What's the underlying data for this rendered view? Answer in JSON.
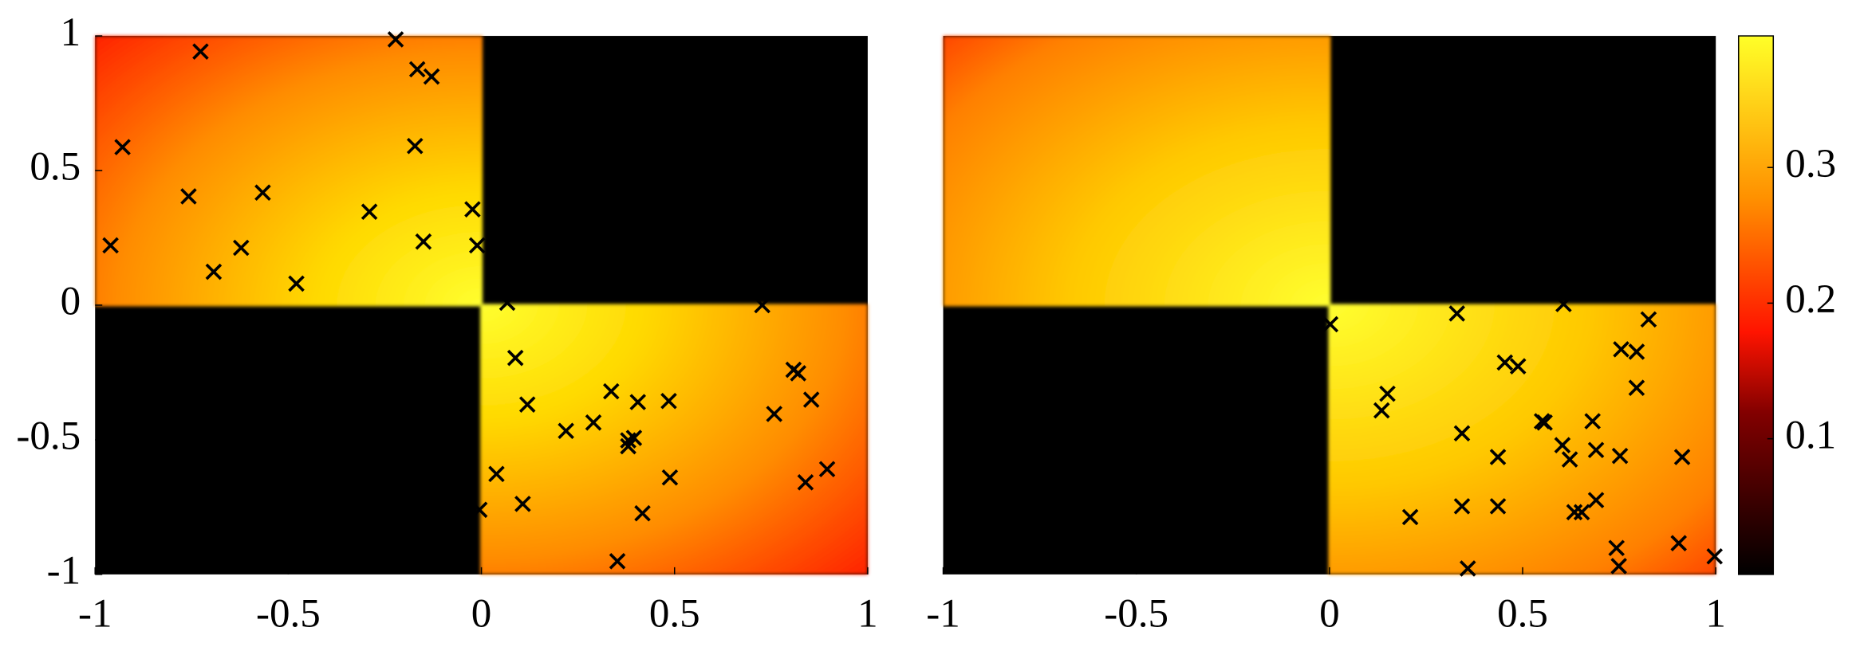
{
  "chart_data": [
    {
      "type": "scatter",
      "color": "#000000",
      "xlim": [
        -1,
        1
      ],
      "ylim": [
        -1,
        1
      ],
      "xticks": [
        -1,
        -0.5,
        0,
        0.5,
        1
      ],
      "yticks": [
        -1,
        -0.5,
        0,
        0.5,
        1
      ],
      "x": [
        -0.727,
        -0.222,
        -0.166,
        -0.129,
        -0.929,
        -0.172,
        -0.758,
        -0.566,
        -0.29,
        -0.023,
        -0.96,
        -0.622,
        -0.15,
        -0.011,
        -0.693,
        -0.479,
        0.067,
        0.727,
        0.088,
        0.119,
        0.336,
        0.405,
        0.485,
        0.29,
        0.219,
        0.38,
        0.395,
        0.38,
        0.808,
        0.82,
        0.854,
        0.758,
        0.895,
        0.839,
        0.039,
        0.488,
        -0.005,
        0.107,
        0.417,
        0.352
      ],
      "values": [
        0.942,
        0.987,
        0.876,
        0.849,
        0.587,
        0.591,
        0.404,
        0.418,
        0.347,
        0.356,
        0.222,
        0.213,
        0.236,
        0.222,
        0.124,
        0.08,
        0.009,
        0.0,
        -0.196,
        -0.369,
        -0.32,
        -0.36,
        -0.356,
        -0.436,
        -0.467,
        -0.502,
        -0.493,
        -0.524,
        -0.24,
        -0.253,
        -0.351,
        -0.404,
        -0.609,
        -0.658,
        -0.627,
        -0.64,
        -0.76,
        -0.738,
        -0.773,
        -0.951
      ]
    },
    {
      "type": "scatter",
      "color": "#000000",
      "xlim": [
        -1,
        1
      ],
      "ylim": [
        -1,
        1
      ],
      "xticks": [
        -1,
        -0.5,
        0,
        0.5,
        1
      ],
      "x": [
        0.002,
        0.33,
        0.606,
        0.826,
        0.15,
        0.135,
        0.454,
        0.488,
        0.755,
        0.795,
        0.795,
        0.55,
        0.557,
        0.681,
        0.343,
        0.603,
        0.69,
        0.622,
        0.752,
        0.436,
        0.913,
        0.343,
        0.436,
        0.69,
        0.634,
        0.653,
        0.209,
        0.743,
        0.904,
        0.749,
        0.358,
        0.997
      ],
      "values": [
        -0.071,
        -0.031,
        0.004,
        -0.053,
        -0.329,
        -0.391,
        -0.213,
        -0.227,
        -0.164,
        -0.173,
        -0.307,
        -0.431,
        -0.436,
        -0.431,
        -0.476,
        -0.52,
        -0.538,
        -0.573,
        -0.56,
        -0.564,
        -0.564,
        -0.747,
        -0.747,
        -0.724,
        -0.769,
        -0.769,
        -0.787,
        -0.902,
        -0.884,
        -0.969,
        -0.978,
        -0.933
      ],
      "colormap": "hot",
      "clim": [
        0,
        0.397
      ],
      "cticks": [
        0.1,
        0.2,
        0.3
      ]
    }
  ]
}
